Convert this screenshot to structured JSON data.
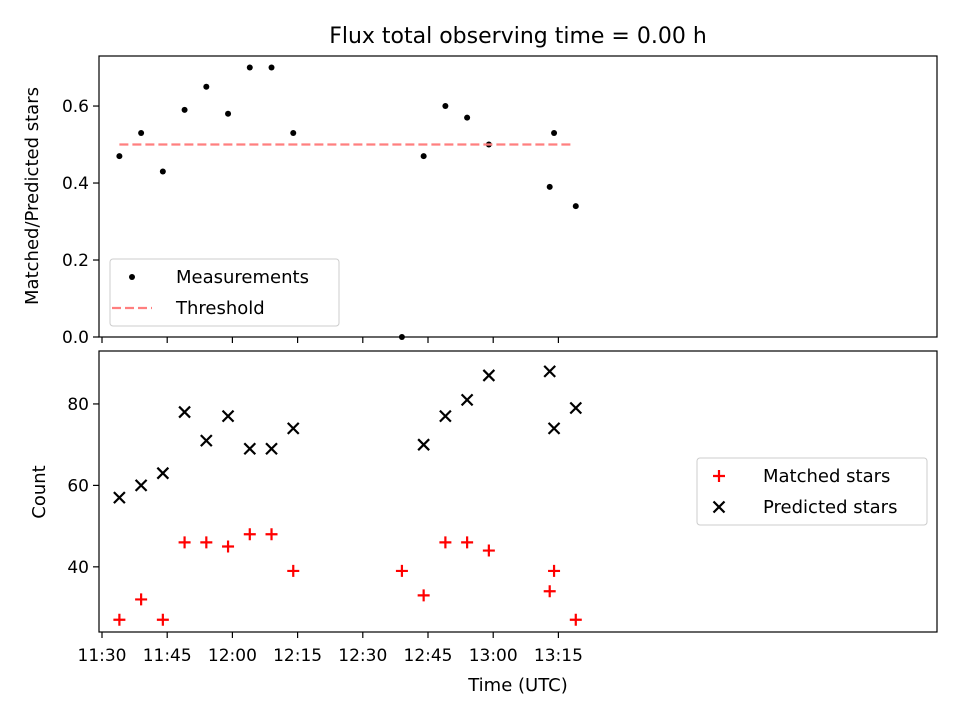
{
  "title": "Flux total observing time = 0.00 h",
  "chart_data": [
    {
      "type": "scatter",
      "ylabel": "Matched/Predicted stars",
      "ylim": [
        0,
        0.73
      ],
      "yticks": [
        "0.0",
        "0.2",
        "0.4",
        "0.6"
      ],
      "legend_position": "lower-left",
      "series": [
        {
          "name": "Measurements",
          "color": "#000000",
          "marker": "dot",
          "x": [
            "11:34",
            "11:39",
            "11:44",
            "11:49",
            "11:54",
            "11:59",
            "12:04",
            "12:09",
            "12:14",
            "12:39",
            "12:44",
            "12:49",
            "12:54",
            "12:59",
            "13:13",
            "13:14",
            "13:19"
          ],
          "y": [
            0.47,
            0.53,
            0.43,
            0.59,
            0.65,
            0.58,
            0.7,
            0.7,
            0.53,
            0.0,
            0.47,
            0.6,
            0.57,
            0.5,
            0.39,
            0.53,
            0.34
          ]
        },
        {
          "name": "Threshold",
          "color": "#ff7f7f",
          "marker": "dashed-line",
          "x": [
            "11:34",
            "13:18"
          ],
          "y": [
            0.5,
            0.5
          ]
        }
      ]
    },
    {
      "type": "scatter",
      "xlabel": "Time (UTC)",
      "ylabel": "Count",
      "ylim": [
        24,
        93
      ],
      "yticks": [
        "40",
        "60",
        "80"
      ],
      "xticks": [
        "11:30",
        "11:45",
        "12:00",
        "12:15",
        "12:30",
        "12:45",
        "13:00",
        "13:15"
      ],
      "legend_position": "center-right",
      "series": [
        {
          "name": "Matched stars",
          "color": "#ff0000",
          "marker": "plus",
          "x": [
            "11:34",
            "11:39",
            "11:44",
            "11:49",
            "11:54",
            "11:59",
            "12:04",
            "12:09",
            "12:14",
            "12:39",
            "12:44",
            "12:49",
            "12:54",
            "12:59",
            "13:13",
            "13:14",
            "13:19"
          ],
          "y": [
            27,
            32,
            27,
            46,
            46,
            45,
            48,
            48,
            39,
            39,
            33,
            46,
            46,
            44,
            34,
            39,
            27
          ]
        },
        {
          "name": "Predicted stars",
          "color": "#000000",
          "marker": "x",
          "x": [
            "11:34",
            "11:39",
            "11:44",
            "11:49",
            "11:54",
            "11:59",
            "12:04",
            "12:09",
            "12:14",
            "12:44",
            "12:49",
            "12:54",
            "12:59",
            "13:13",
            "13:14",
            "13:19"
          ],
          "y": [
            57,
            60,
            63,
            78,
            71,
            77,
            69,
            69,
            74,
            70,
            77,
            81,
            87,
            88,
            74,
            79
          ]
        }
      ]
    }
  ]
}
